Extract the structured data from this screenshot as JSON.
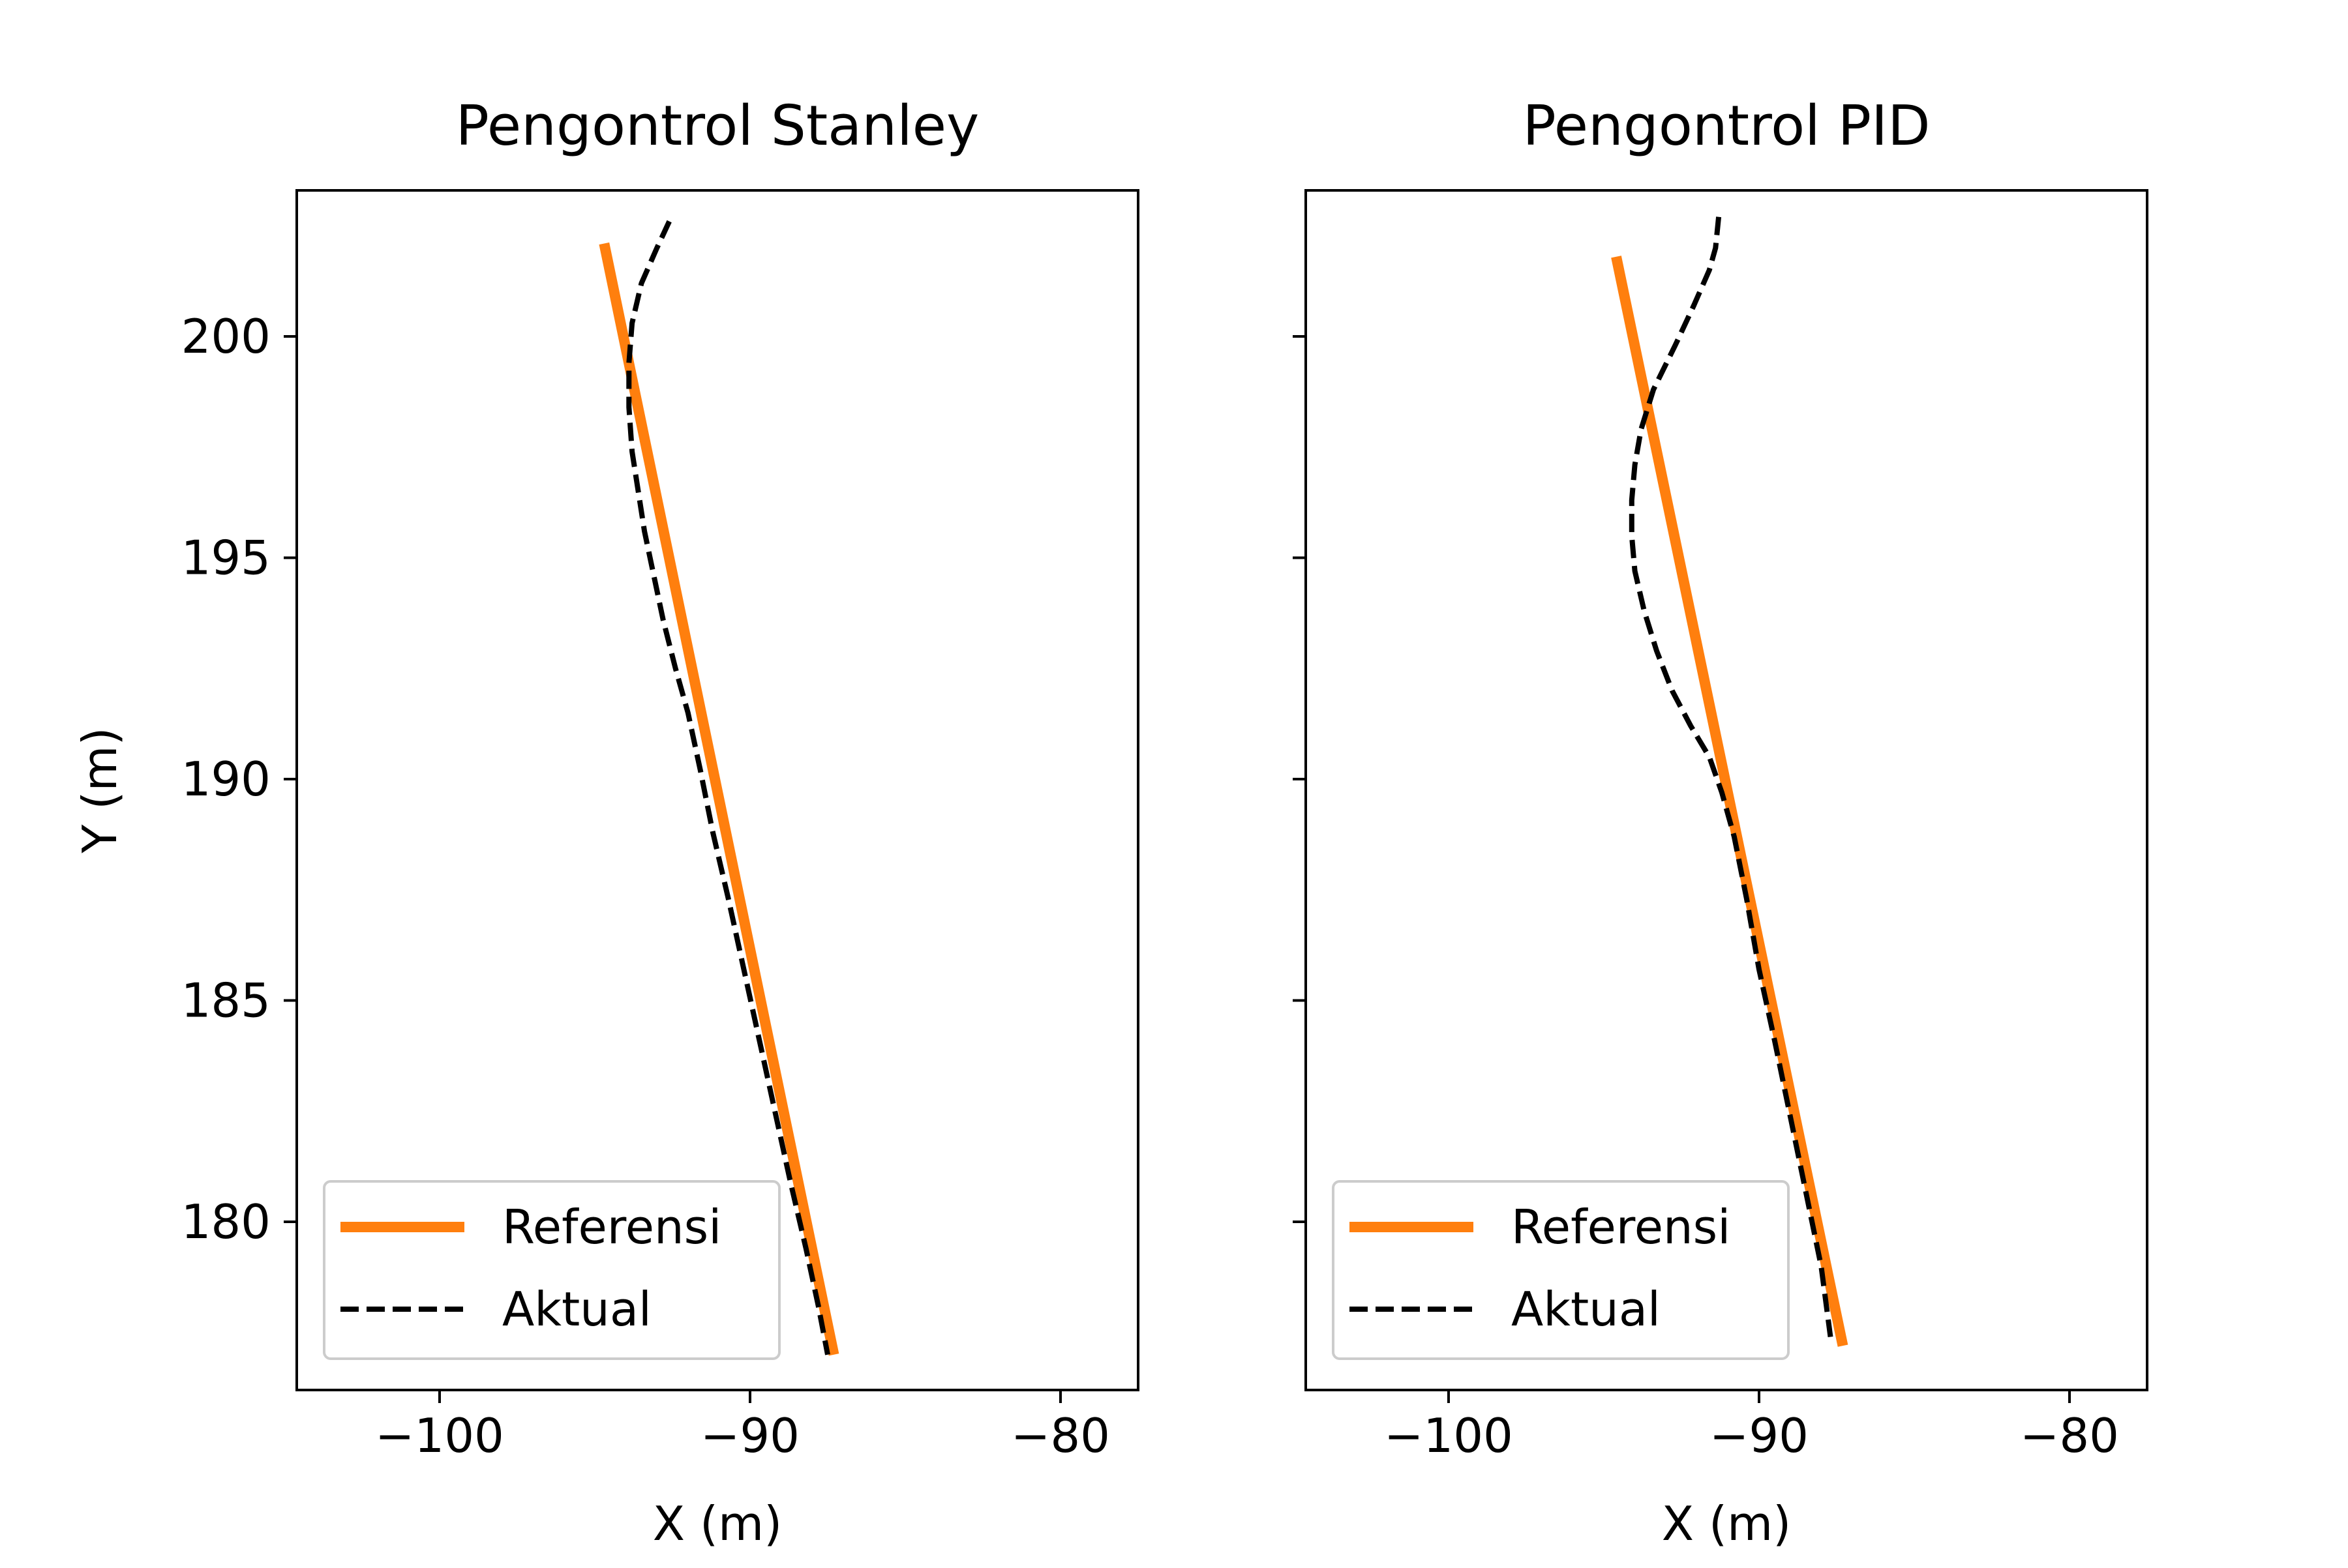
{
  "chart_data": [
    {
      "type": "line",
      "title": "Pengontrol Stanley",
      "xlabel": "X (m)",
      "ylabel": "Y (m)",
      "xlim": [
        -104.6,
        -77.5
      ],
      "ylim": [
        176.2,
        203.3
      ],
      "xticks": [
        -100,
        -90,
        -80
      ],
      "xtick_labels": [
        "−100",
        "−90",
        "−80"
      ],
      "yticks": [
        180,
        185,
        190,
        195,
        200
      ],
      "ytick_labels": [
        "180",
        "185",
        "190",
        "195",
        "200"
      ],
      "legend_position": "lower-left",
      "series": [
        {
          "name": "Referensi",
          "color": "#ff7f0e",
          "style": "solid",
          "x": [
            -94.7,
            -87.3
          ],
          "y": [
            202.1,
            177.0
          ]
        },
        {
          "name": "Aktual",
          "color": "#000000",
          "style": "dashed",
          "x": [
            -92.6,
            -93.0,
            -93.5,
            -93.8,
            -93.9,
            -93.9,
            -93.8,
            -93.6,
            -93.4,
            -93.1,
            -92.8,
            -92.4,
            -92.0,
            -91.6,
            -91.2,
            -90.7,
            -90.2,
            -89.7,
            -89.2,
            -88.7,
            -88.2,
            -87.8,
            -87.5
          ],
          "y": [
            202.6,
            202.0,
            201.2,
            200.3,
            199.4,
            198.4,
            197.4,
            196.5,
            195.6,
            194.6,
            193.6,
            192.5,
            191.5,
            190.2,
            188.8,
            187.3,
            185.7,
            184.1,
            182.5,
            180.9,
            179.4,
            178.1,
            177.0
          ]
        }
      ]
    },
    {
      "type": "line",
      "title": "Pengontrol PID",
      "xlabel": "X (m)",
      "ylabel": "",
      "xlim": [
        -104.6,
        -77.5
      ],
      "ylim": [
        176.2,
        203.3
      ],
      "xticks": [
        -100,
        -90,
        -80
      ],
      "xtick_labels": [
        "−100",
        "−90",
        "−80"
      ],
      "yticks": [
        180,
        185,
        190,
        195,
        200
      ],
      "ytick_labels": [],
      "legend_position": "lower-left",
      "series": [
        {
          "name": "Referensi",
          "color": "#ff7f0e",
          "style": "solid",
          "x": [
            -94.6,
            -87.3
          ],
          "y": [
            201.8,
            177.2
          ]
        },
        {
          "name": "Aktual",
          "color": "#000000",
          "style": "dashed",
          "x": [
            -91.3,
            -91.4,
            -91.6,
            -92.1,
            -92.7,
            -93.4,
            -93.8,
            -94.0,
            -94.1,
            -94.1,
            -94.0,
            -93.7,
            -93.3,
            -92.8,
            -92.2,
            -91.6,
            -91.2,
            -90.8,
            -90.4,
            -90.0,
            -89.5,
            -89.0,
            -88.5,
            -88.0,
            -87.7
          ],
          "y": [
            202.7,
            202.0,
            201.5,
            200.7,
            199.8,
            198.8,
            197.9,
            197.1,
            196.3,
            195.5,
            194.7,
            193.8,
            192.9,
            192.0,
            191.2,
            190.5,
            189.7,
            188.7,
            187.3,
            185.7,
            184.1,
            182.4,
            180.7,
            179.0,
            177.4
          ]
        }
      ]
    }
  ]
}
